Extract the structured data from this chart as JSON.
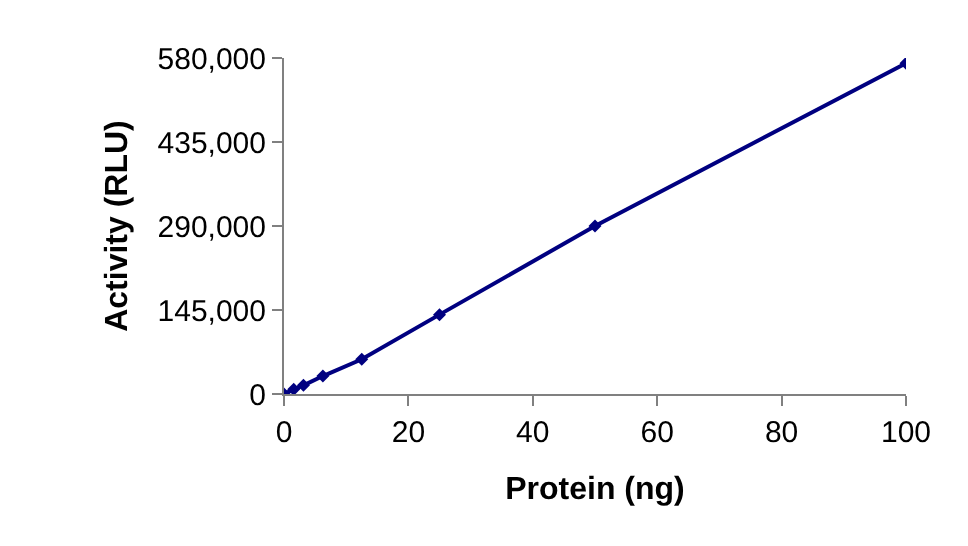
{
  "chart_data": {
    "type": "line",
    "xlabel": "Protein (ng)",
    "ylabel": "Activity (RLU)",
    "x": [
      0,
      1.5625,
      3.125,
      6.25,
      12.5,
      25,
      50,
      100
    ],
    "series": [
      {
        "color": "#000080",
        "values": [
          0,
          8000,
          15000,
          31000,
          60000,
          137000,
          290000,
          571000
        ]
      }
    ],
    "xlim": [
      0,
      100
    ],
    "xticks": [
      0,
      20,
      40,
      60,
      80,
      100
    ],
    "ylim": [
      0,
      580000
    ],
    "yticks": [
      {
        "value": 0,
        "label": "0"
      },
      {
        "value": 145000,
        "label": "145,000"
      },
      {
        "value": 290000,
        "label": "290,000"
      },
      {
        "value": 435000,
        "label": "435,000"
      },
      {
        "value": 580000,
        "label": "580,000"
      }
    ],
    "marker": "diamond",
    "line_style": "solid",
    "grid": false
  }
}
